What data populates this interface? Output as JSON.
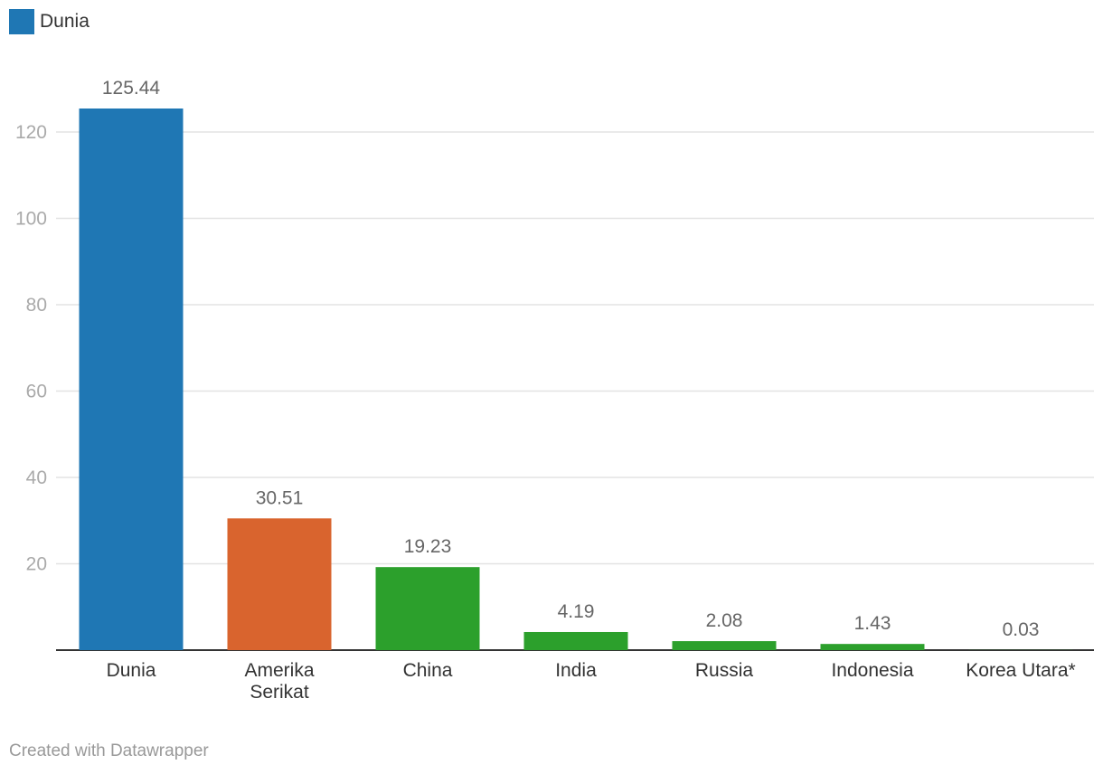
{
  "legend": {
    "label": "Dunia",
    "color": "#1f77b4"
  },
  "credit": "Created with Datawrapper",
  "chart_data": {
    "type": "bar",
    "categories": [
      "Dunia",
      "Amerika Serikat",
      "China",
      "India",
      "Russia",
      "Indonesia",
      "Korea Utara*"
    ],
    "category_lines": [
      [
        "Dunia"
      ],
      [
        "Amerika",
        "Serikat"
      ],
      [
        "China"
      ],
      [
        "India"
      ],
      [
        "Russia"
      ],
      [
        "Indonesia"
      ],
      [
        "Korea Utara*"
      ]
    ],
    "values": [
      125.44,
      30.51,
      19.23,
      4.19,
      2.08,
      1.43,
      0.03
    ],
    "value_labels": [
      "125.44",
      "30.51",
      "19.23",
      "4.19",
      "2.08",
      "1.43",
      "0.03"
    ],
    "colors": [
      "#1f77b4",
      "#d9642e",
      "#2ca02c",
      "#2ca02c",
      "#2ca02c",
      "#2ca02c",
      "#2ca02c"
    ],
    "yticks": [
      20,
      40,
      60,
      80,
      100,
      120
    ],
    "ylim": [
      0,
      125.44
    ],
    "grid": true,
    "legend_position": "top-left",
    "title": "",
    "xlabel": "",
    "ylabel": ""
  }
}
